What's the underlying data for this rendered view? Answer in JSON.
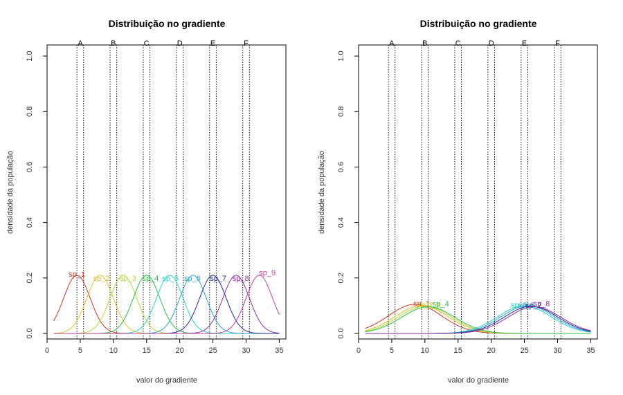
{
  "chart_data": [
    {
      "type": "line",
      "title": "Distribuição no gradiente",
      "xlabel": "valor do gradiente",
      "ylabel": "densidade da população",
      "xlim": [
        0,
        36
      ],
      "ylim": [
        -0.02,
        1.04
      ],
      "x_ticks": [
        0,
        5,
        10,
        15,
        20,
        25,
        30,
        35
      ],
      "y_ticks": [
        0.0,
        0.2,
        0.4,
        0.6,
        0.8,
        1.0
      ],
      "stations": [
        {
          "label": "A",
          "lines": [
            4.5,
            5.5
          ]
        },
        {
          "label": "B",
          "lines": [
            9.5,
            10.5
          ]
        },
        {
          "label": "C",
          "lines": [
            14.5,
            15.5
          ]
        },
        {
          "label": "D",
          "lines": [
            19.5,
            20.5
          ]
        },
        {
          "label": "E",
          "lines": [
            24.5,
            25.5
          ]
        },
        {
          "label": "F",
          "lines": [
            29.5,
            30.5
          ]
        }
      ],
      "x_range": [
        1,
        35
      ],
      "series": [
        {
          "name": "sp_1",
          "mean": 4.5,
          "sd": 2.0,
          "peak": 0.21,
          "color": "#c0392b",
          "label_x": 4.5,
          "label_y": 0.205
        },
        {
          "name": "sp_2",
          "mean": 8.0,
          "sd": 2.0,
          "peak": 0.21,
          "color": "#d9c230",
          "label_x": 8.2,
          "label_y": 0.19
        },
        {
          "name": "sp_3",
          "mean": 11.5,
          "sd": 2.0,
          "peak": 0.21,
          "color": "#b5d63a",
          "label_x": 12.2,
          "label_y": 0.19
        },
        {
          "name": "sp_4",
          "mean": 15.0,
          "sd": 2.0,
          "peak": 0.21,
          "color": "#2fb84a",
          "label_x": 15.6,
          "label_y": 0.19
        },
        {
          "name": "sp_5",
          "mean": 18.5,
          "sd": 2.0,
          "peak": 0.21,
          "color": "#2dcfc0",
          "label_x": 18.6,
          "label_y": 0.19
        },
        {
          "name": "sp_6",
          "mean": 22.0,
          "sd": 2.0,
          "peak": 0.21,
          "color": "#2f9fd0",
          "label_x": 21.9,
          "label_y": 0.19
        },
        {
          "name": "sp_7",
          "mean": 25.0,
          "sd": 2.0,
          "peak": 0.21,
          "color": "#1c2e8c",
          "label_x": 25.8,
          "label_y": 0.19
        },
        {
          "name": "sp_8",
          "mean": 28.5,
          "sd": 2.0,
          "peak": 0.21,
          "color": "#8a2f9a",
          "label_x": 29.2,
          "label_y": 0.19
        },
        {
          "name": "sp_9",
          "mean": 32.0,
          "sd": 2.0,
          "peak": 0.21,
          "color": "#c0409a",
          "label_x": 33.2,
          "label_y": 0.21
        }
      ]
    },
    {
      "type": "line",
      "title": "Distribuição no gradiente",
      "xlabel": "valor do gradiente",
      "ylabel": "densidade da população",
      "xlim": [
        0,
        36
      ],
      "ylim": [
        -0.02,
        1.04
      ],
      "x_ticks": [
        0,
        5,
        10,
        15,
        20,
        25,
        30,
        35
      ],
      "y_ticks": [
        0.0,
        0.2,
        0.4,
        0.6,
        0.8,
        1.0
      ],
      "stations": [
        {
          "label": "A",
          "lines": [
            4.5,
            5.5
          ]
        },
        {
          "label": "B",
          "lines": [
            9.5,
            10.5
          ]
        },
        {
          "label": "C",
          "lines": [
            14.5,
            15.5
          ]
        },
        {
          "label": "D",
          "lines": [
            19.5,
            20.5
          ]
        },
        {
          "label": "E",
          "lines": [
            24.5,
            25.5
          ]
        },
        {
          "label": "F",
          "lines": [
            29.5,
            30.5
          ]
        }
      ],
      "x_range": [
        1,
        35
      ],
      "series": [
        {
          "name": "sp_1",
          "mean": 8.5,
          "sd": 4.0,
          "peak": 0.105,
          "color": "#c0392b",
          "label_x": 9.5,
          "label_y": 0.098
        },
        {
          "name": "sp_2",
          "mean": 9.5,
          "sd": 4.0,
          "peak": 0.1,
          "color": "#d9c230",
          "label_x": 10.0,
          "label_y": 0.094
        },
        {
          "name": "sp_3",
          "mean": 10.0,
          "sd": 4.0,
          "peak": 0.098,
          "color": "#b5d63a",
          "label_x": 11.0,
          "label_y": 0.094
        },
        {
          "name": "sp_4",
          "mean": 10.5,
          "sd": 4.0,
          "peak": 0.096,
          "color": "#2fb84a",
          "label_x": 12.4,
          "label_y": 0.097
        },
        {
          "name": "sp_5",
          "mean": 25.0,
          "sd": 4.0,
          "peak": 0.1,
          "color": "#2dcfc0",
          "label_x": 24.2,
          "label_y": 0.093
        },
        {
          "name": "sp_6",
          "mean": 25.5,
          "sd": 4.0,
          "peak": 0.1,
          "color": "#2f9fd0",
          "label_x": 25.3,
          "label_y": 0.093
        },
        {
          "name": "sp_7",
          "mean": 26.0,
          "sd": 4.0,
          "peak": 0.098,
          "color": "#1c2e8c",
          "label_x": 26.4,
          "label_y": 0.092
        },
        {
          "name": "sp_8",
          "mean": 26.5,
          "sd": 4.0,
          "peak": 0.096,
          "color": "#8a2f9a",
          "label_x": 27.6,
          "label_y": 0.098
        }
      ]
    }
  ]
}
